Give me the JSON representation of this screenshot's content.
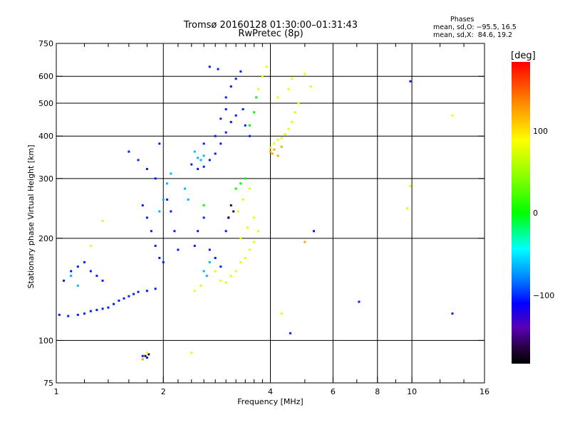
{
  "title": {
    "line1": "Tromsø 20160128 01:30:00–01:31:43",
    "line2": "RwPretec (8p)"
  },
  "stats": {
    "heading": "Phases",
    "o_line": "mean, sd,O: −95.5, 16.5",
    "x_line": "mean, sd,X:  84.6, 19.2"
  },
  "colorbar": {
    "label": "[deg]",
    "ticks": [
      "100",
      "0",
      "−100"
    ],
    "tick_values": [
      100,
      0,
      -100
    ],
    "range": [
      -180,
      180
    ],
    "colors": [
      "#000000",
      "#3c0064",
      "#0000ff",
      "#0070ff",
      "#00ffff",
      "#00ff00",
      "#7fff00",
      "#ffff00",
      "#ff7a00",
      "#ff0000"
    ]
  },
  "chart_data": {
    "type": "scatter",
    "xlabel": "Frequency [MHz]",
    "ylabel": "Stationary phase Virtual Height [km]",
    "xscale": "log",
    "yscale": "log",
    "xlim": [
      1,
      16
    ],
    "ylim": [
      75,
      750
    ],
    "xticks": [
      1,
      2,
      4,
      6,
      8,
      10,
      16
    ],
    "xtick_labels": [
      "1",
      "2",
      "4",
      "6",
      "8",
      "10",
      "16"
    ],
    "xminor": [
      1.2,
      1.4,
      1.6,
      1.8,
      2.2,
      2.4,
      2.6,
      2.8,
      3,
      3.2,
      3.4,
      3.6,
      3.8,
      5,
      7,
      9,
      12,
      14
    ],
    "yticks": [
      75,
      100,
      200,
      300,
      400,
      500,
      600,
      750
    ],
    "ytick_labels": [
      "75",
      "100",
      "200",
      "300",
      "400",
      "500",
      "600",
      "750"
    ],
    "grid_x": [
      2,
      4,
      6,
      8,
      10
    ],
    "grid_y": [
      100,
      200,
      300,
      400,
      500,
      600
    ],
    "series": [
      {
        "phase_deg": -110,
        "points": [
          [
            1.02,
            119
          ],
          [
            1.08,
            118
          ],
          [
            1.15,
            119
          ],
          [
            1.2,
            120
          ],
          [
            1.25,
            122
          ],
          [
            1.3,
            123
          ],
          [
            1.35,
            124
          ],
          [
            1.4,
            125
          ],
          [
            1.45,
            128
          ],
          [
            1.5,
            131
          ],
          [
            1.55,
            133
          ],
          [
            1.6,
            135
          ],
          [
            1.65,
            137
          ],
          [
            1.7,
            139
          ],
          [
            1.8,
            140
          ],
          [
            1.9,
            142
          ],
          [
            1.05,
            150
          ],
          [
            1.1,
            160
          ],
          [
            1.15,
            165
          ],
          [
            1.2,
            170
          ],
          [
            1.25,
            160
          ],
          [
            1.3,
            155
          ],
          [
            1.35,
            150
          ],
          [
            1.6,
            360
          ],
          [
            1.7,
            340
          ],
          [
            1.8,
            320
          ],
          [
            1.9,
            300
          ],
          [
            1.95,
            380
          ],
          [
            1.75,
            250
          ],
          [
            1.8,
            230
          ],
          [
            1.85,
            210
          ],
          [
            1.9,
            190
          ],
          [
            1.95,
            175
          ],
          [
            2.0,
            170
          ],
          [
            2.05,
            260
          ],
          [
            2.1,
            240
          ],
          [
            2.15,
            210
          ],
          [
            2.2,
            185
          ],
          [
            2.45,
            190
          ],
          [
            2.5,
            210
          ],
          [
            2.6,
            230
          ],
          [
            2.7,
            185
          ],
          [
            2.8,
            175
          ],
          [
            2.9,
            165
          ],
          [
            3.0,
            210
          ],
          [
            3.05,
            230
          ],
          [
            2.4,
            330
          ],
          [
            2.5,
            320
          ],
          [
            2.6,
            325
          ],
          [
            2.7,
            340
          ],
          [
            2.8,
            355
          ],
          [
            2.9,
            380
          ],
          [
            3.0,
            410
          ],
          [
            3.1,
            440
          ],
          [
            3.2,
            460
          ],
          [
            3.0,
            520
          ],
          [
            3.1,
            560
          ],
          [
            3.2,
            590
          ],
          [
            3.3,
            620
          ],
          [
            3.35,
            480
          ],
          [
            3.4,
            430
          ],
          [
            3.5,
            400
          ],
          [
            2.6,
            380
          ],
          [
            2.8,
            400
          ],
          [
            2.9,
            450
          ],
          [
            3.0,
            480
          ],
          [
            2.7,
            640
          ],
          [
            2.85,
            630
          ],
          [
            1.75,
            90
          ],
          [
            1.8,
            89
          ],
          [
            5.3,
            210
          ],
          [
            7.1,
            130
          ],
          [
            4.55,
            105
          ],
          [
            9.9,
            580
          ],
          [
            13.0,
            120
          ]
        ]
      },
      {
        "phase_deg": -160,
        "points": [
          [
            3.1,
            250
          ],
          [
            3.15,
            240
          ],
          [
            3.05,
            230
          ],
          [
            1.78,
            90
          ],
          [
            1.82,
            91
          ]
        ]
      },
      {
        "phase_deg": -60,
        "points": [
          [
            2.45,
            360
          ],
          [
            2.5,
            345
          ],
          [
            2.55,
            340
          ],
          [
            2.6,
            350
          ],
          [
            1.95,
            240
          ],
          [
            2.0,
            260
          ],
          [
            2.05,
            290
          ],
          [
            2.1,
            310
          ],
          [
            2.3,
            280
          ],
          [
            2.35,
            260
          ],
          [
            2.6,
            160
          ],
          [
            2.7,
            170
          ],
          [
            2.65,
            155
          ],
          [
            1.1,
            155
          ],
          [
            1.15,
            145
          ]
        ]
      },
      {
        "phase_deg": 0,
        "points": [
          [
            3.5,
            430
          ],
          [
            3.6,
            470
          ],
          [
            3.65,
            520
          ],
          [
            3.3,
            290
          ],
          [
            3.4,
            300
          ],
          [
            3.2,
            280
          ],
          [
            2.6,
            250
          ]
        ]
      },
      {
        "phase_deg": 80,
        "points": [
          [
            2.8,
            160
          ],
          [
            2.9,
            150
          ],
          [
            3.0,
            148
          ],
          [
            3.1,
            155
          ],
          [
            3.2,
            160
          ],
          [
            3.3,
            170
          ],
          [
            3.4,
            175
          ],
          [
            3.5,
            185
          ],
          [
            3.6,
            195
          ],
          [
            3.7,
            210
          ],
          [
            3.3,
            200
          ],
          [
            3.45,
            215
          ],
          [
            3.25,
            240
          ],
          [
            3.35,
            260
          ],
          [
            3.5,
            280
          ],
          [
            3.6,
            230
          ],
          [
            3.7,
            550
          ],
          [
            3.8,
            600
          ],
          [
            3.9,
            640
          ],
          [
            4.0,
            370
          ],
          [
            4.1,
            380
          ],
          [
            4.2,
            390
          ],
          [
            4.3,
            395
          ],
          [
            4.4,
            405
          ],
          [
            4.5,
            420
          ],
          [
            4.6,
            440
          ],
          [
            4.7,
            470
          ],
          [
            4.8,
            500
          ],
          [
            4.5,
            550
          ],
          [
            4.6,
            590
          ],
          [
            4.2,
            520
          ],
          [
            5.0,
            610
          ],
          [
            5.2,
            560
          ],
          [
            2.55,
            145
          ],
          [
            2.45,
            140
          ],
          [
            1.25,
            190
          ],
          [
            1.35,
            225
          ],
          [
            4.3,
            120
          ],
          [
            1.8,
            92
          ],
          [
            2.4,
            92
          ],
          [
            9.9,
            285
          ],
          [
            9.7,
            245
          ],
          [
            13.0,
            460
          ]
        ]
      },
      {
        "phase_deg": 120,
        "points": [
          [
            4.0,
            360
          ],
          [
            4.05,
            355
          ],
          [
            4.1,
            365
          ],
          [
            4.2,
            350
          ],
          [
            4.3,
            372
          ],
          [
            5.0,
            195
          ],
          [
            1.75,
            88
          ]
        ]
      }
    ]
  }
}
